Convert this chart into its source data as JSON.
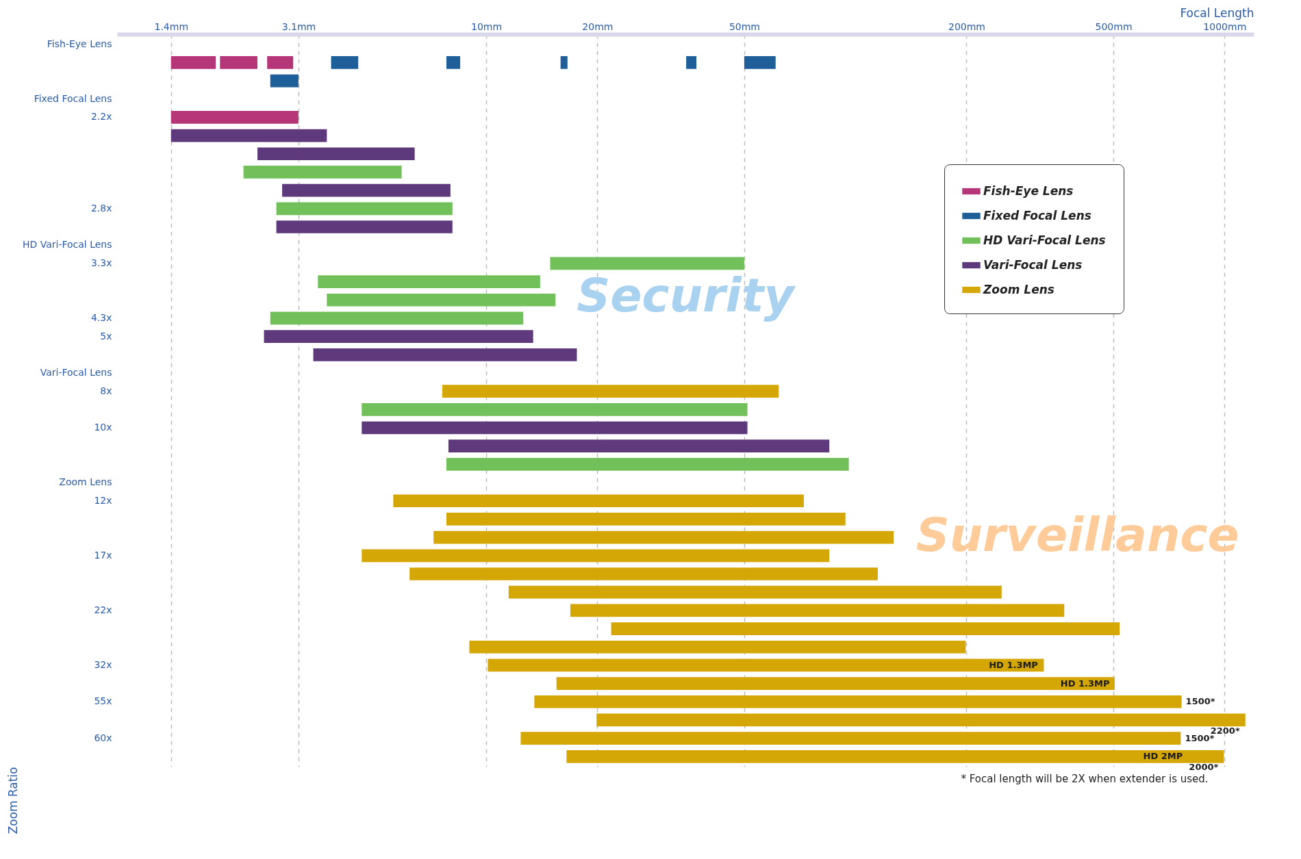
{
  "chart_data": {
    "type": "bar",
    "orientation": "horizontal",
    "xlabel": "Focal Length",
    "ylabel": "Zoom Ratio",
    "categories": [
      "Fish-Eye Lens",
      null,
      null,
      "Fixed Focal Lens",
      "2.2x",
      null,
      null,
      null,
      null,
      "2.8x",
      null,
      "HD Vari-Focal Lens",
      "3.3x",
      null,
      null,
      "4.3x",
      "5x",
      null,
      "Vari-Focal Lens",
      "8x",
      null,
      "10x",
      null,
      null,
      "Zoom Lens",
      "12x",
      null,
      null,
      "17x",
      null,
      null,
      "22x",
      null,
      null,
      "32x",
      null,
      "55x",
      null,
      "60x",
      null
    ],
    "xlim": [
      1,
      1200
    ],
    "log": "x",
    "xticks": [
      {
        "value": 1.4,
        "label": "1.4mm"
      },
      {
        "value": 3.1,
        "label": "3.1mm"
      },
      {
        "value": 10,
        "label": "10mm"
      },
      {
        "value": 20,
        "label": "20mm"
      },
      {
        "value": 50,
        "label": "50mm"
      },
      {
        "value": 200,
        "label": "200mm"
      },
      {
        "value": 500,
        "label": "500mm"
      },
      {
        "value": 1000,
        "label": "1000mm"
      }
    ],
    "grid": "x",
    "legend": "top right",
    "series": [
      {
        "name": "Fish-Eye Lens",
        "color": "#b5377a",
        "values": [
          null,
          0.45,
          null,
          null,
          1.7,
          null,
          null,
          null,
          null,
          null,
          null,
          null,
          null,
          null,
          null,
          null,
          null,
          null,
          null,
          null,
          null,
          null,
          null,
          null,
          null,
          null,
          null,
          null,
          null,
          null,
          null,
          null,
          null,
          null,
          null,
          null,
          null,
          null,
          null,
          null
        ],
        "base": [
          null,
          1.4,
          null,
          null,
          1.4,
          null,
          null,
          null,
          null,
          null,
          null,
          null,
          null,
          null,
          null,
          null,
          null,
          null,
          null,
          null,
          null,
          null,
          null,
          null,
          null,
          null,
          null,
          null,
          null,
          null,
          null,
          null,
          null,
          null,
          null,
          null,
          null,
          null,
          null,
          null
        ]
      },
      {
        "color": "#b5377a",
        "values": [
          null,
          0.5,
          null,
          null,
          null,
          null,
          null,
          null,
          null,
          null,
          null,
          null,
          null,
          null,
          null,
          null,
          null,
          null,
          null,
          null,
          null,
          null,
          null,
          null,
          null,
          null,
          null,
          null,
          null,
          null,
          null,
          null,
          null,
          null,
          null,
          null,
          null,
          null,
          null,
          null
        ],
        "base": [
          null,
          1.9,
          null,
          null,
          null,
          null,
          null,
          null,
          null,
          null,
          null,
          null,
          null,
          null,
          null,
          null,
          null,
          null,
          null,
          null,
          null,
          null,
          null,
          null,
          null,
          null,
          null,
          null,
          null,
          null,
          null,
          null,
          null,
          null,
          null,
          null,
          null,
          null,
          null,
          null
        ]
      },
      {
        "color": "#b5377a",
        "values": [
          null,
          0.45,
          null,
          null,
          null,
          null,
          null,
          null,
          null,
          null,
          null,
          null,
          null,
          null,
          null,
          null,
          null,
          null,
          null,
          null,
          null,
          null,
          null,
          null,
          null,
          null,
          null,
          null,
          null,
          null,
          null,
          null,
          null,
          null,
          null,
          null,
          null,
          null,
          null,
          null
        ],
        "base": [
          null,
          2.55,
          null,
          null,
          null,
          null,
          null,
          null,
          null,
          null,
          null,
          null,
          null,
          null,
          null,
          null,
          null,
          null,
          null,
          null,
          null,
          null,
          null,
          null,
          null,
          null,
          null,
          null,
          null,
          null,
          null,
          null,
          null,
          null,
          null,
          null,
          null,
          null,
          null,
          null
        ]
      },
      {
        "name": "Fixed Focal Lens",
        "color": "#1f5f99",
        "values": [
          null,
          0.7,
          0.5,
          null,
          null,
          null,
          null,
          null,
          null,
          null,
          null,
          null,
          null,
          null,
          null,
          null,
          null,
          null,
          null,
          null,
          null,
          null,
          null,
          null,
          null,
          null,
          null,
          null,
          null,
          null,
          null,
          null,
          null,
          null,
          null,
          null,
          null,
          null,
          null,
          null
        ],
        "base": [
          null,
          3.8,
          2.6,
          null,
          null,
          null,
          null,
          null,
          null,
          null,
          null,
          null,
          null,
          null,
          null,
          null,
          null,
          null,
          null,
          null,
          null,
          null,
          null,
          null,
          null,
          null,
          null,
          null,
          null,
          null,
          null,
          null,
          null,
          null,
          null,
          null,
          null,
          null,
          null,
          null
        ]
      },
      {
        "color": "#1f5f99",
        "values": [
          null,
          0.7,
          null,
          null,
          null,
          null,
          null,
          null,
          null,
          null,
          null,
          null,
          null,
          null,
          null,
          null,
          null,
          null,
          null,
          null,
          null,
          null,
          null,
          null,
          null,
          null,
          null,
          null,
          null,
          null,
          null,
          null,
          null,
          null,
          null,
          null,
          null,
          null,
          null,
          null
        ],
        "base": [
          null,
          7.8,
          null,
          null,
          null,
          null,
          null,
          null,
          null,
          null,
          null,
          null,
          null,
          null,
          null,
          null,
          null,
          null,
          null,
          null,
          null,
          null,
          null,
          null,
          null,
          null,
          null,
          null,
          null,
          null,
          null,
          null,
          null,
          null,
          null,
          null,
          null,
          null,
          null,
          null
        ]
      },
      {
        "color": "#1f5f99",
        "values": [
          null,
          0.7,
          null,
          null,
          null,
          null,
          null,
          null,
          null,
          null,
          null,
          null,
          null,
          null,
          null,
          null,
          null,
          null,
          null,
          null,
          null,
          null,
          null,
          null,
          null,
          null,
          null,
          null,
          null,
          null,
          null,
          null,
          null,
          null,
          null,
          null,
          null,
          null,
          null,
          null
        ],
        "base": [
          null,
          15.9,
          null,
          null,
          null,
          null,
          null,
          null,
          null,
          null,
          null,
          null,
          null,
          null,
          null,
          null,
          null,
          null,
          null,
          null,
          null,
          null,
          null,
          null,
          null,
          null,
          null,
          null,
          null,
          null,
          null,
          null,
          null,
          null,
          null,
          null,
          null,
          null,
          null,
          null
        ]
      },
      {
        "color": "#1f5f99",
        "values": [
          null,
          2.3,
          null,
          null,
          null,
          null,
          null,
          null,
          null,
          null,
          null,
          null,
          null,
          null,
          null,
          null,
          null,
          null,
          null,
          null,
          null,
          null,
          null,
          null,
          null,
          null,
          null,
          null,
          null,
          null,
          null,
          null,
          null,
          null,
          null,
          null,
          null,
          null,
          null,
          null
        ],
        "base": [
          null,
          34.8,
          null,
          null,
          null,
          null,
          null,
          null,
          null,
          null,
          null,
          null,
          null,
          null,
          null,
          null,
          null,
          null,
          null,
          null,
          null,
          null,
          null,
          null,
          null,
          null,
          null,
          null,
          null,
          null,
          null,
          null,
          null,
          null,
          null,
          null,
          null,
          null,
          null,
          null
        ]
      },
      {
        "color": "#1f5f99",
        "values": [
          null,
          10.8,
          null,
          null,
          null,
          null,
          null,
          null,
          null,
          null,
          null,
          null,
          null,
          null,
          null,
          null,
          null,
          null,
          null,
          null,
          null,
          null,
          null,
          null,
          null,
          null,
          null,
          null,
          null,
          null,
          null,
          null,
          null,
          null,
          null,
          null,
          null,
          null,
          null,
          null
        ],
        "base": [
          null,
          50,
          null,
          null,
          null,
          null,
          null,
          null,
          null,
          null,
          null,
          null,
          null,
          null,
          null,
          null,
          null,
          null,
          null,
          null,
          null,
          null,
          null,
          null,
          null,
          null,
          null,
          null,
          null,
          null,
          null,
          null,
          null,
          null,
          null,
          null,
          null,
          null,
          null,
          null
        ]
      },
      {
        "name": "HD Vari-Focal Lens",
        "color": "#72c05a",
        "values": [
          null,
          null,
          null,
          null,
          null,
          null,
          null,
          3.7,
          null,
          5.4,
          null,
          null,
          35.1,
          10.5,
          11.7,
          10,
          null,
          null,
          null,
          null,
          46.4,
          null,
          null,
          88.2,
          null,
          null,
          null,
          null,
          null,
          null,
          null,
          null,
          null,
          null,
          null,
          null,
          null,
          null,
          null,
          null
        ],
        "base": [
          null,
          null,
          null,
          null,
          null,
          null,
          null,
          2.2,
          null,
          2.7,
          null,
          null,
          14.9,
          3.5,
          3.7,
          2.6,
          null,
          null,
          null,
          null,
          4.6,
          null,
          null,
          7.8,
          null,
          null,
          null,
          null,
          null,
          null,
          null,
          null,
          null,
          null,
          null,
          null,
          null,
          null,
          null,
          null
        ]
      },
      {
        "name": "Vari-Focal Lens",
        "color": "#5e3a7d",
        "values": [
          null,
          null,
          null,
          null,
          null,
          2.3,
          4,
          null,
          5.2,
          null,
          5.4,
          null,
          null,
          null,
          null,
          null,
          10.9,
          14.2,
          null,
          null,
          null,
          46.4,
          77.1,
          null,
          null,
          null,
          null,
          null,
          null,
          null,
          null,
          null,
          null,
          null,
          null,
          null,
          null,
          null,
          null,
          null
        ],
        "base": [
          null,
          null,
          null,
          null,
          null,
          1.4,
          2.4,
          null,
          2.8,
          null,
          2.7,
          null,
          null,
          null,
          null,
          null,
          2.5,
          3.4,
          null,
          null,
          null,
          4.6,
          7.9,
          null,
          null,
          null,
          null,
          null,
          null,
          null,
          null,
          null,
          null,
          null,
          null,
          null,
          null,
          null,
          null,
          null
        ]
      },
      {
        "name": "Zoom Lens",
        "color": "#d4a707",
        "values": [
          null,
          null,
          null,
          null,
          null,
          null,
          null,
          null,
          null,
          null,
          null,
          null,
          null,
          null,
          null,
          null,
          null,
          null,
          null,
          54.4,
          null,
          null,
          null,
          null,
          null,
          66.9,
          86.2,
          119.8,
          80.4,
          108.8,
          237.5,
          351.1,
          498.2,
          190,
          313.9,
          488.5,
          751.5,
          1119.1,
          748.6,
          979.5
        ],
        "base": [
          null,
          null,
          null,
          null,
          null,
          null,
          null,
          null,
          null,
          null,
          null,
          null,
          null,
          null,
          null,
          null,
          null,
          null,
          null,
          7.6,
          null,
          null,
          null,
          null,
          null,
          5.6,
          7.8,
          7.2,
          4.6,
          6.2,
          11.5,
          16.9,
          21.8,
          9,
          10.1,
          15.5,
          13.5,
          19.9,
          12.4,
          16.5
        ]
      }
    ],
    "annotations": [
      "Security",
      "Surveillance",
      "* Focal length will be 2X when extender is used.",
      "HD 1.3MP",
      "HD 1.3MP",
      "1500*",
      "2200*",
      "1500*",
      "2000*",
      "HD 2MP"
    ]
  }
}
